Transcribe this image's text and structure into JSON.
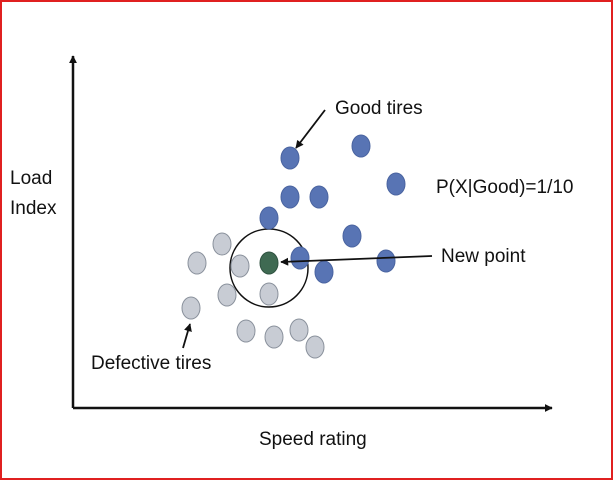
{
  "diagram": {
    "y_axis_label_line1": "Load",
    "y_axis_label_line2": "Index",
    "x_axis_label": "Speed rating",
    "good_label": "Good tires",
    "defective_label": "Defective tires",
    "new_point_label": "New point",
    "probability_text": "P(X|Good)=1/10"
  },
  "colors": {
    "good": "#5874b4",
    "defective": "#c8ccd4",
    "new_point": "#3f6a52",
    "frame": "#e02020"
  }
}
